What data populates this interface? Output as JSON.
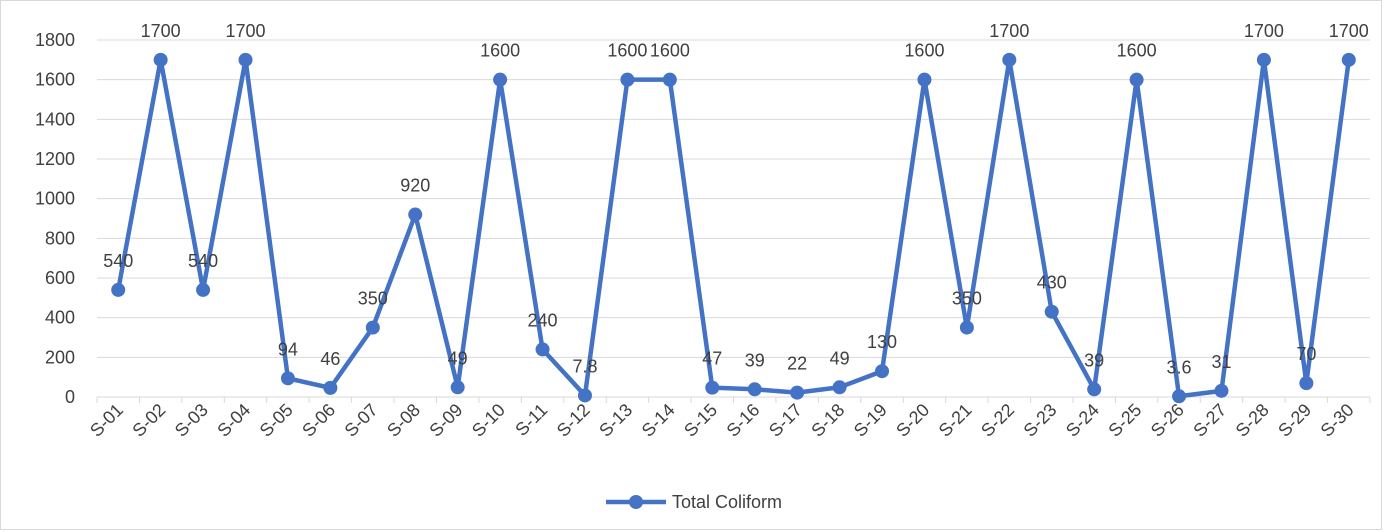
{
  "chart_data": {
    "type": "line",
    "title": "",
    "xlabel": "",
    "ylabel": "",
    "categories": [
      "S-01",
      "S-02",
      "S-03",
      "S-04",
      "S-05",
      "S-06",
      "S-07",
      "S-08",
      "S-09",
      "S-10",
      "S-11",
      "S-12",
      "S-13",
      "S-14",
      "S-15",
      "S-16",
      "S-17",
      "S-18",
      "S-19",
      "S-20",
      "S-21",
      "S-22",
      "S-23",
      "S-24",
      "S-25",
      "S-26",
      "S-27",
      "S-28",
      "S-29",
      "S-30"
    ],
    "series": [
      {
        "name": "Total Coliform",
        "values": [
          540,
          1700,
          540,
          1700,
          94,
          46,
          350,
          920,
          49,
          1600,
          240,
          7.8,
          1600,
          1600,
          47,
          39,
          22,
          49,
          130,
          1600,
          350,
          1700,
          430,
          39,
          1600,
          3.6,
          31,
          1700,
          70,
          1700
        ],
        "labels": [
          "540",
          "1700",
          "540",
          "1700",
          "94",
          "46",
          "350",
          "920",
          "49",
          "1600",
          "240",
          "7.8",
          "1600",
          "1600",
          "47",
          "39",
          "22",
          "49",
          "130",
          "1600",
          "350",
          "1700",
          "430",
          "39",
          "1600",
          "3.6",
          "31",
          "1700",
          "70",
          "1700"
        ],
        "color": "#4472C4"
      }
    ],
    "ylim": [
      0,
      1800
    ],
    "yticks": [
      0,
      200,
      400,
      600,
      800,
      1000,
      1200,
      1400,
      1600,
      1800
    ],
    "grid": true,
    "legend_position": "bottom",
    "colors": {
      "line": "#4472C4",
      "grid": "#d9d9d9",
      "text": "#404040"
    }
  }
}
